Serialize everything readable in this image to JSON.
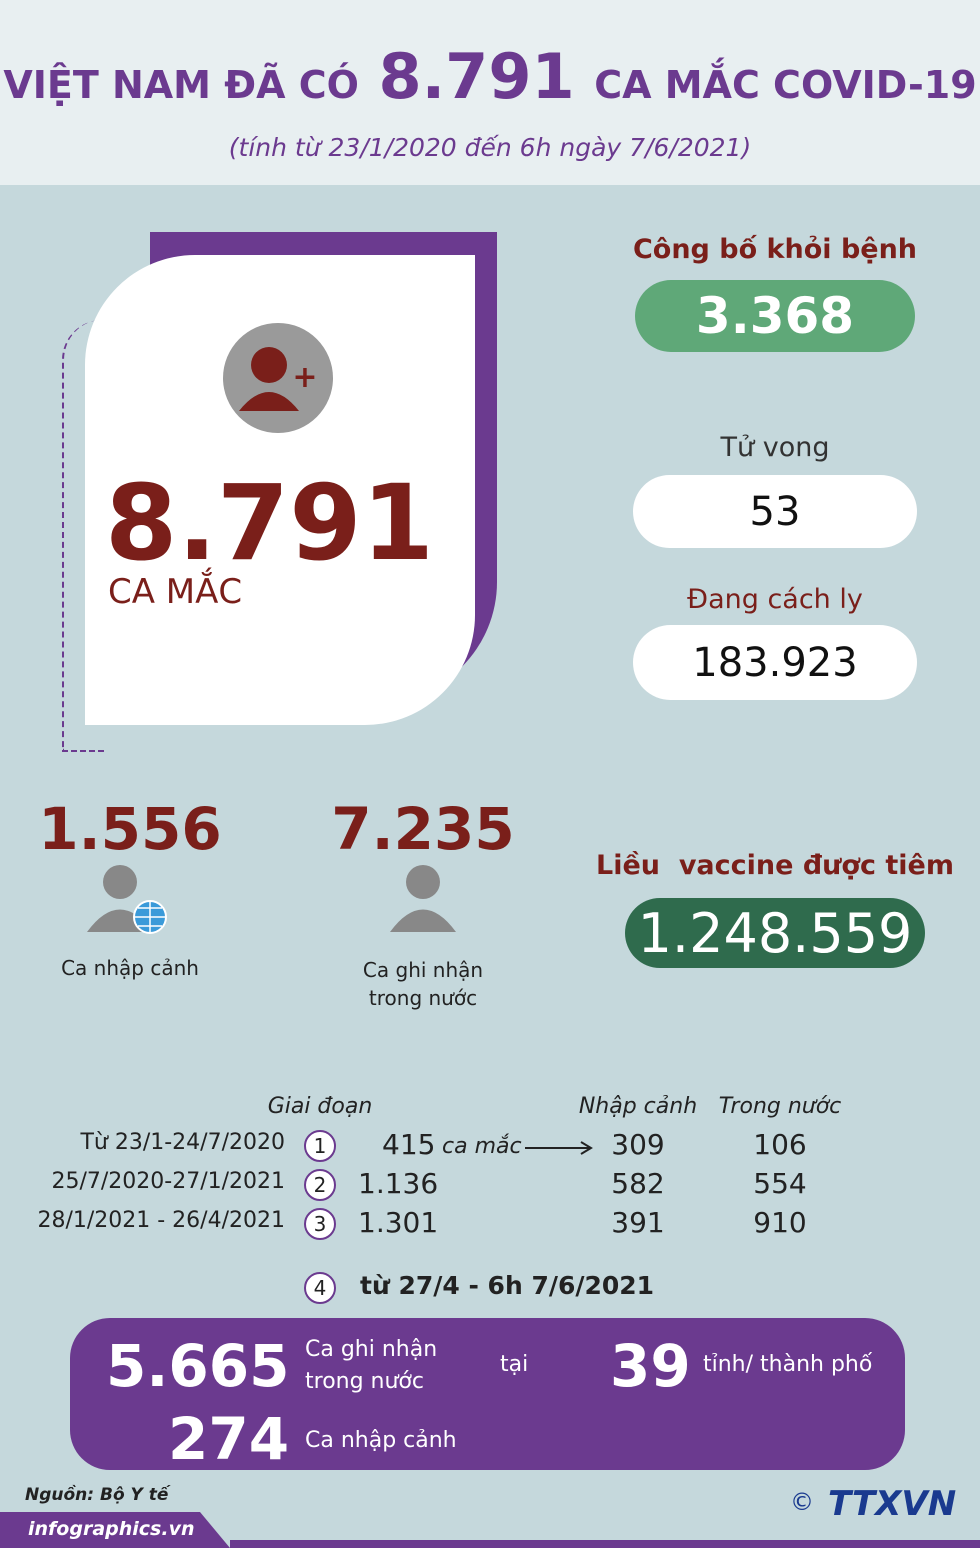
{
  "header": {
    "title_prefix": "VIỆT NAM ĐÃ CÓ",
    "title_number": "8.791",
    "title_suffix": "CA MẮC COVID-19",
    "subtitle": "(tính từ 23/1/2020 đến 6h ngày 7/6/2021)"
  },
  "total": {
    "value": "8.791",
    "label": "CA MẮC"
  },
  "stats": [
    {
      "label": "Công bố khỏi bệnh",
      "value": "3.368"
    },
    {
      "label": "Tử vong",
      "value": "53"
    },
    {
      "label": "Đang cách ly",
      "value": "183.923"
    }
  ],
  "breakdown": [
    {
      "value": "1.556",
      "label": "Ca nhập cảnh"
    },
    {
      "value": "7.235",
      "label": "Ca ghi nhận trong nước"
    }
  ],
  "vaccine": {
    "label": "Liều  vaccine được tiêm",
    "value": "1.248.559"
  },
  "phases": {
    "headers": [
      "Giai đoạn",
      "Nhập cảnh",
      "Trong nước"
    ],
    "rows": [
      {
        "period": "Từ 23/1-24/7/2020",
        "index": "1",
        "total": "415",
        "unit": "ca mắc",
        "imported": "309",
        "domestic": "106"
      },
      {
        "period": "25/7/2020-27/1/2021",
        "index": "2",
        "total": "1.136",
        "imported": "582",
        "domestic": "554"
      },
      {
        "period": "28/1/2021 - 26/4/2021",
        "index": "3",
        "total": "1.301",
        "imported": "391",
        "domestic": "910"
      }
    ]
  },
  "phase4": {
    "index": "4",
    "period": "từ 27/4 - 6h 7/6/2021",
    "domestic": "5.665",
    "domestic_label": "Ca ghi nhận trong nước",
    "connector": "tại",
    "provinces": "39",
    "provinces_label": "tỉnh/ thành phố",
    "imported": "274",
    "imported_label": "Ca nhập cảnh"
  },
  "footer": {
    "source": "Nguồn: Bộ Y tế",
    "site": "infographics.vn",
    "logo": "TTXVN"
  }
}
